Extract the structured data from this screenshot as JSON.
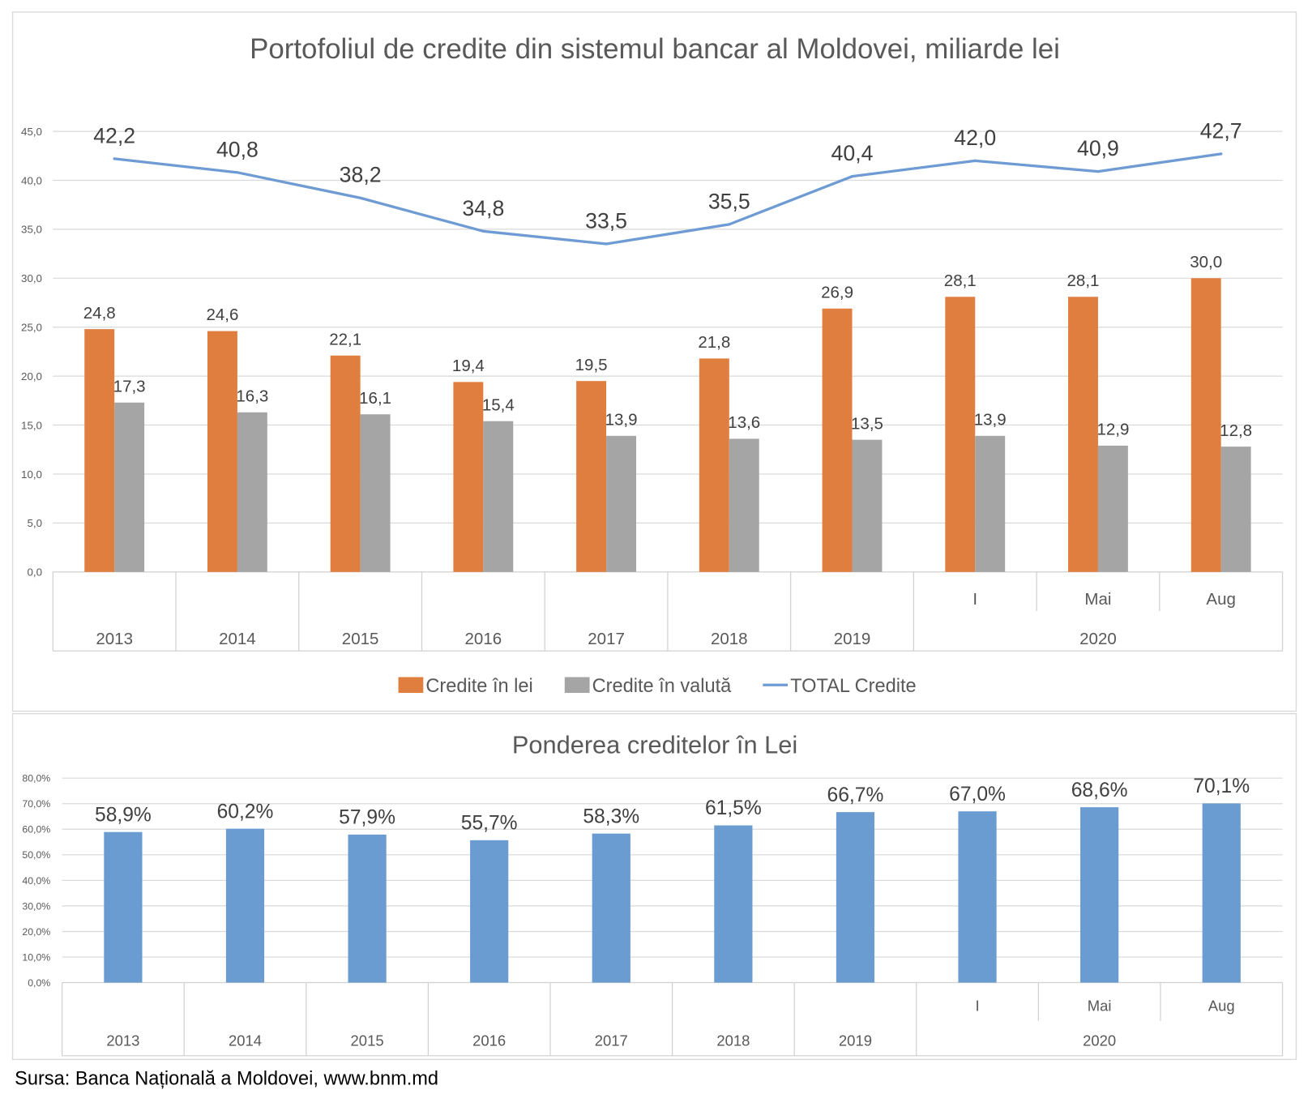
{
  "source": "Sursa: Banca Națională a Moldovei, www.bnm.md",
  "colors": {
    "grid": "#D9D9D9",
    "axis_line": "#D0D0D0",
    "axis_text": "#595959",
    "label_text": "#404040"
  },
  "chart_data": [
    {
      "type": "bar",
      "title": "Portofoliul de credite din sistemul bancar al Moldovei, miliarde lei",
      "categories": [
        "2013",
        "2014",
        "2015",
        "2016",
        "2017",
        "2018",
        "2019",
        "I",
        "Mai",
        "Aug"
      ],
      "groups": [
        {
          "label": "2020",
          "start": 7,
          "count": 3
        }
      ],
      "ylim": [
        0,
        45
      ],
      "yticks": [
        0,
        5,
        10,
        15,
        20,
        25,
        30,
        35,
        40,
        45
      ],
      "ytick_labels": [
        "0,0",
        "5,0",
        "10,0",
        "15,0",
        "20,0",
        "25,0",
        "30,0",
        "35,0",
        "40,0",
        "45,0"
      ],
      "grid": true,
      "legend": "bottom",
      "series": [
        {
          "name": "Credite în lei",
          "type": "bar",
          "color": "#E07E3F",
          "values": [
            24.8,
            24.6,
            22.1,
            19.4,
            19.5,
            21.8,
            26.9,
            28.1,
            28.1,
            30.0
          ],
          "labels": [
            "24,8",
            "24,6",
            "22,1",
            "19,4",
            "19,5",
            "21,8",
            "26,9",
            "28,1",
            "28,1",
            "30,0"
          ]
        },
        {
          "name": "Credite în valută",
          "type": "bar",
          "color": "#A5A5A5",
          "values": [
            17.3,
            16.3,
            16.1,
            15.4,
            13.9,
            13.6,
            13.5,
            13.9,
            12.9,
            12.8
          ],
          "labels": [
            "17,3",
            "16,3",
            "16,1",
            "15,4",
            "13,9",
            "13,6",
            "13,5",
            "13,9",
            "12,9",
            "12,8"
          ]
        },
        {
          "name": "TOTAL Credite",
          "type": "line",
          "color": "#6E9BD3",
          "values": [
            42.2,
            40.8,
            38.2,
            34.8,
            33.5,
            35.5,
            40.4,
            42.0,
            40.9,
            42.7
          ],
          "labels": [
            "42,2",
            "40,8",
            "38,2",
            "34,8",
            "33,5",
            "35,5",
            "40,4",
            "42,0",
            "40,9",
            "42,7"
          ]
        }
      ]
    },
    {
      "type": "bar",
      "title": "Ponderea creditelor în Lei",
      "categories": [
        "2013",
        "2014",
        "2015",
        "2016",
        "2017",
        "2018",
        "2019",
        "I",
        "Mai",
        "Aug"
      ],
      "groups": [
        {
          "label": "2020",
          "start": 7,
          "count": 3
        }
      ],
      "ylim": [
        0,
        80
      ],
      "yticks": [
        0,
        10,
        20,
        30,
        40,
        50,
        60,
        70,
        80
      ],
      "ytick_labels": [
        "0,0%",
        "10,0%",
        "20,0%",
        "30,0%",
        "40,0%",
        "50,0%",
        "60,0%",
        "70,0%",
        "80,0%"
      ],
      "grid": true,
      "series": [
        {
          "type": "bar",
          "color": "#6A9BD1",
          "values": [
            58.9,
            60.2,
            57.9,
            55.7,
            58.3,
            61.5,
            66.7,
            67.0,
            68.6,
            70.1
          ],
          "labels": [
            "58,9%",
            "60,2%",
            "57,9%",
            "55,7%",
            "58,3%",
            "61,5%",
            "66,7%",
            "67,0%",
            "68,6%",
            "70,1%"
          ]
        }
      ]
    }
  ]
}
